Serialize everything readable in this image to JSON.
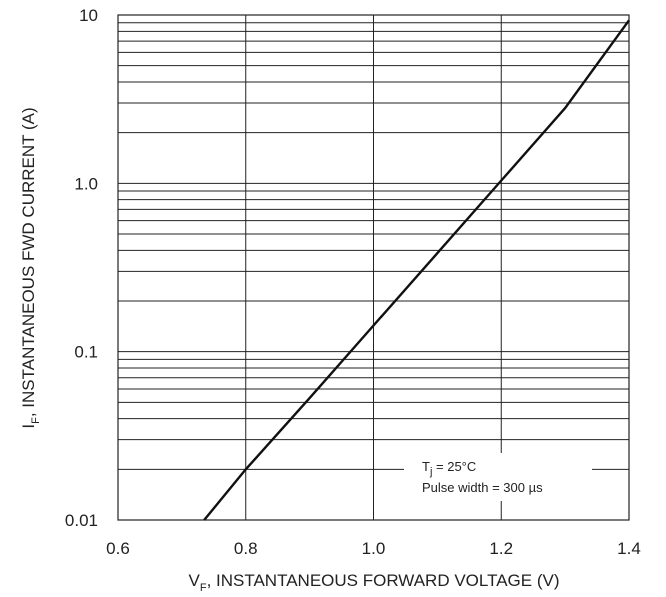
{
  "chart_data": {
    "type": "line",
    "xlabel": {
      "main": "V",
      "sub": "F",
      "rest": ", INSTANTANEOUS FORWARD VOLTAGE (V)"
    },
    "ylabel": {
      "main": "I",
      "sub": "F",
      "rest": ", INSTANTANEOUS FWD CURRENT (A)"
    },
    "xlim": [
      0.6,
      1.4
    ],
    "ylim": [
      0.01,
      10
    ],
    "yscale": "log",
    "grid": true,
    "x_ticks": [
      "0.6",
      "0.8",
      "1.0",
      "1.2",
      "1.4"
    ],
    "y_ticks": [
      "0.01",
      "0.1",
      "1.0",
      "10"
    ],
    "annotation": {
      "line1_main": "T",
      "line1_sub": "j",
      "line1_rest": " = 25°C",
      "line2": "Pulse width = 300 µs"
    },
    "series": [
      {
        "x": [
          0.735,
          0.8,
          0.9,
          1.0,
          1.1,
          1.2,
          1.3,
          1.4
        ],
        "y": [
          0.01,
          0.02,
          0.053,
          0.143,
          0.385,
          1.04,
          2.8,
          9.3
        ]
      }
    ]
  }
}
